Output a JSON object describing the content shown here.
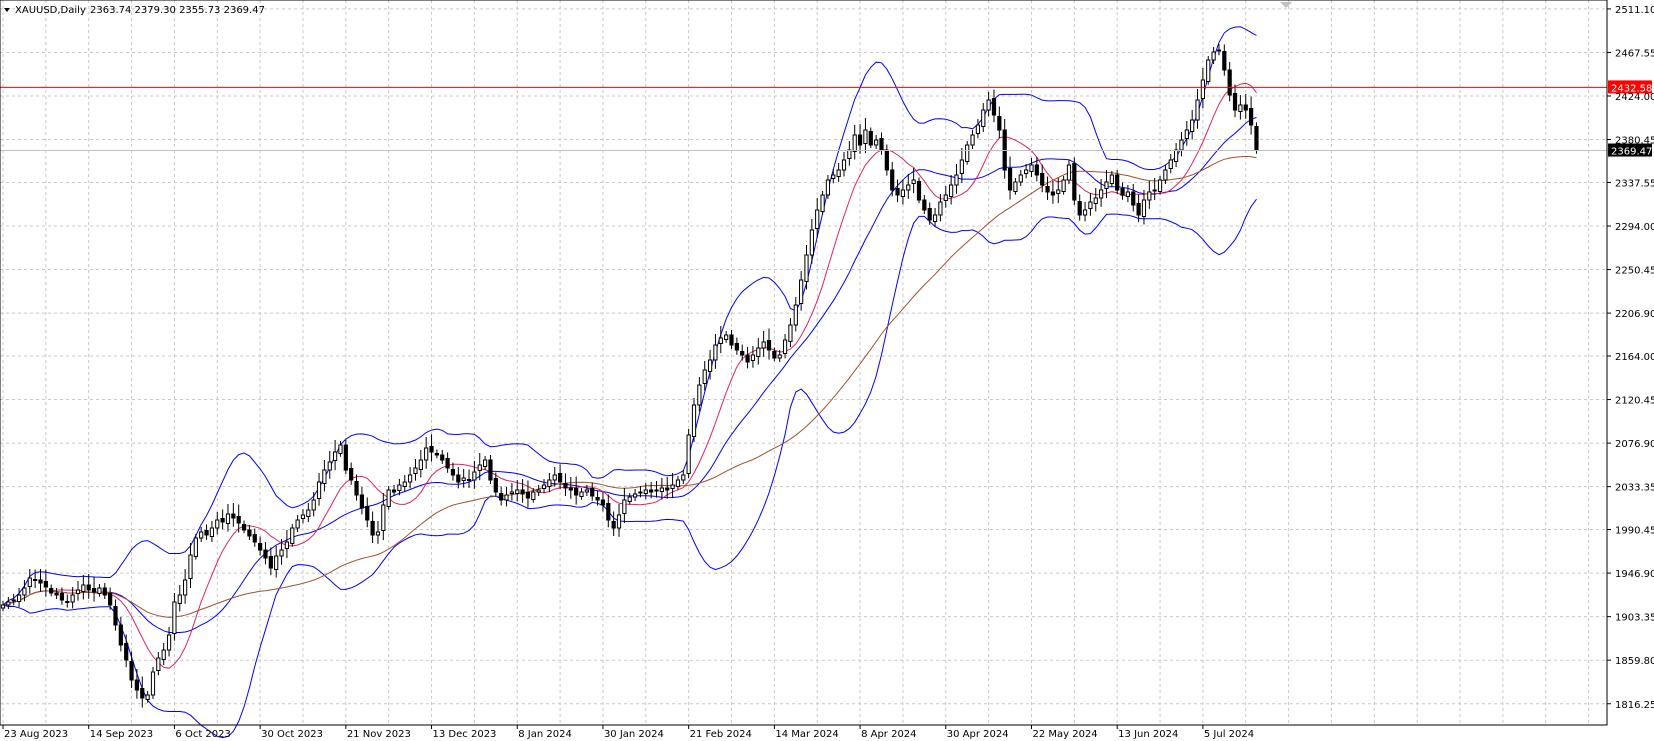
{
  "chart_data": {
    "type": "candlestick",
    "symbol_header": "XAUUSD,Daily",
    "ohlc_header": "2363.74 2379.30 2355.73 2369.47",
    "ylim": [
      1795,
      2520
    ],
    "grid": true,
    "y_ticks": [
      "2511.10",
      "2467.55",
      "2424.00",
      "2380.45",
      "2337.55",
      "2294.00",
      "2250.45",
      "2206.90",
      "2164.00",
      "2120.45",
      "2076.90",
      "2033.35",
      "1990.45",
      "1946.90",
      "1903.35",
      "1859.80",
      "1816.25"
    ],
    "x_ticks": [
      {
        "label": "23 Aug 2023",
        "bar": 0
      },
      {
        "label": "14 Sep 2023",
        "bar": 16
      },
      {
        "label": "6 Oct 2023",
        "bar": 32
      },
      {
        "label": "30 Oct 2023",
        "bar": 48
      },
      {
        "label": "21 Nov 2023",
        "bar": 64
      },
      {
        "label": "13 Dec 2023",
        "bar": 80
      },
      {
        "label": "8 Jan 2024",
        "bar": 96
      },
      {
        "label": "30 Jan 2024",
        "bar": 112
      },
      {
        "label": "21 Feb 2024",
        "bar": 128
      },
      {
        "label": "14 Mar 2024",
        "bar": 144
      },
      {
        "label": "8 Apr 2024",
        "bar": 160
      },
      {
        "label": "30 Apr 2024",
        "bar": 176
      },
      {
        "label": "22 May 2024",
        "bar": 192
      },
      {
        "label": "13 Jun 2024",
        "bar": 208
      },
      {
        "label": "5 Jul 2024",
        "bar": 224
      }
    ],
    "total_bar_slots": 300,
    "closes": [
      1915,
      1918,
      1920,
      1925,
      1932,
      1942,
      1940,
      1937,
      1933,
      1927,
      1925,
      1920,
      1918,
      1925,
      1930,
      1935,
      1930,
      1928,
      1932,
      1925,
      1915,
      1895,
      1875,
      1860,
      1840,
      1830,
      1822,
      1825,
      1848,
      1862,
      1870,
      1885,
      1918,
      1925,
      1940,
      1965,
      1982,
      1988,
      1985,
      1992,
      2000,
      1998,
      2006,
      2002,
      1997,
      1990,
      1984,
      1978,
      1970,
      1962,
      1952,
      1964,
      1970,
      1978,
      1992,
      2000,
      2005,
      2010,
      2020,
      2038,
      2050,
      2058,
      2068,
      2075,
      2050,
      2040,
      2025,
      2012,
      2000,
      1985,
      1988,
      2015,
      2030,
      2028,
      2035,
      2038,
      2045,
      2052,
      2060,
      2072,
      2068,
      2065,
      2060,
      2052,
      2045,
      2038,
      2042,
      2040,
      2048,
      2055,
      2060,
      2040,
      2028,
      2020,
      2025,
      2028,
      2030,
      2026,
      2022,
      2028,
      2030,
      2035,
      2040,
      2045,
      2038,
      2032,
      2030,
      2025,
      2028,
      2030,
      2024,
      2020,
      2015,
      2000,
      1992,
      2005,
      2020,
      2023,
      2026,
      2028,
      2030,
      2028,
      2030,
      2032,
      2030,
      2035,
      2040,
      2045,
      2085,
      2115,
      2135,
      2150,
      2160,
      2175,
      2182,
      2185,
      2175,
      2170,
      2165,
      2158,
      2165,
      2172,
      2178,
      2170,
      2162,
      2165,
      2180,
      2195,
      2215,
      2240,
      2265,
      2290,
      2310,
      2325,
      2340,
      2345,
      2350,
      2360,
      2370,
      2385,
      2375,
      2390,
      2375,
      2380,
      2370,
      2350,
      2330,
      2325,
      2330,
      2335,
      2340,
      2320,
      2310,
      2300,
      2305,
      2318,
      2325,
      2335,
      2345,
      2360,
      2375,
      2385,
      2395,
      2410,
      2420,
      2405,
      2390,
      2350,
      2330,
      2338,
      2345,
      2350,
      2355,
      2345,
      2335,
      2328,
      2325,
      2330,
      2340,
      2355,
      2320,
      2305,
      2310,
      2318,
      2322,
      2330,
      2338,
      2345,
      2330,
      2325,
      2328,
      2315,
      2305,
      2320,
      2328,
      2330,
      2340,
      2350,
      2360,
      2370,
      2380,
      2390,
      2400,
      2420,
      2440,
      2460,
      2468,
      2470,
      2450,
      2425,
      2410,
      2415,
      2410,
      2395,
      2369.47
    ]
  },
  "price_tags": {
    "red_line": {
      "label": "2432.58",
      "value": 2432.58,
      "color": "#ff0000"
    },
    "current": {
      "label": "2369.47",
      "value": 2369.47,
      "color": "#000000"
    }
  },
  "colors": {
    "grid": "#c8c8c8",
    "bollinger": "#0000ff",
    "ma_short": "#e0245e",
    "ma_long": "#a0522d",
    "bull": "#ffffff",
    "bear": "#000000"
  }
}
